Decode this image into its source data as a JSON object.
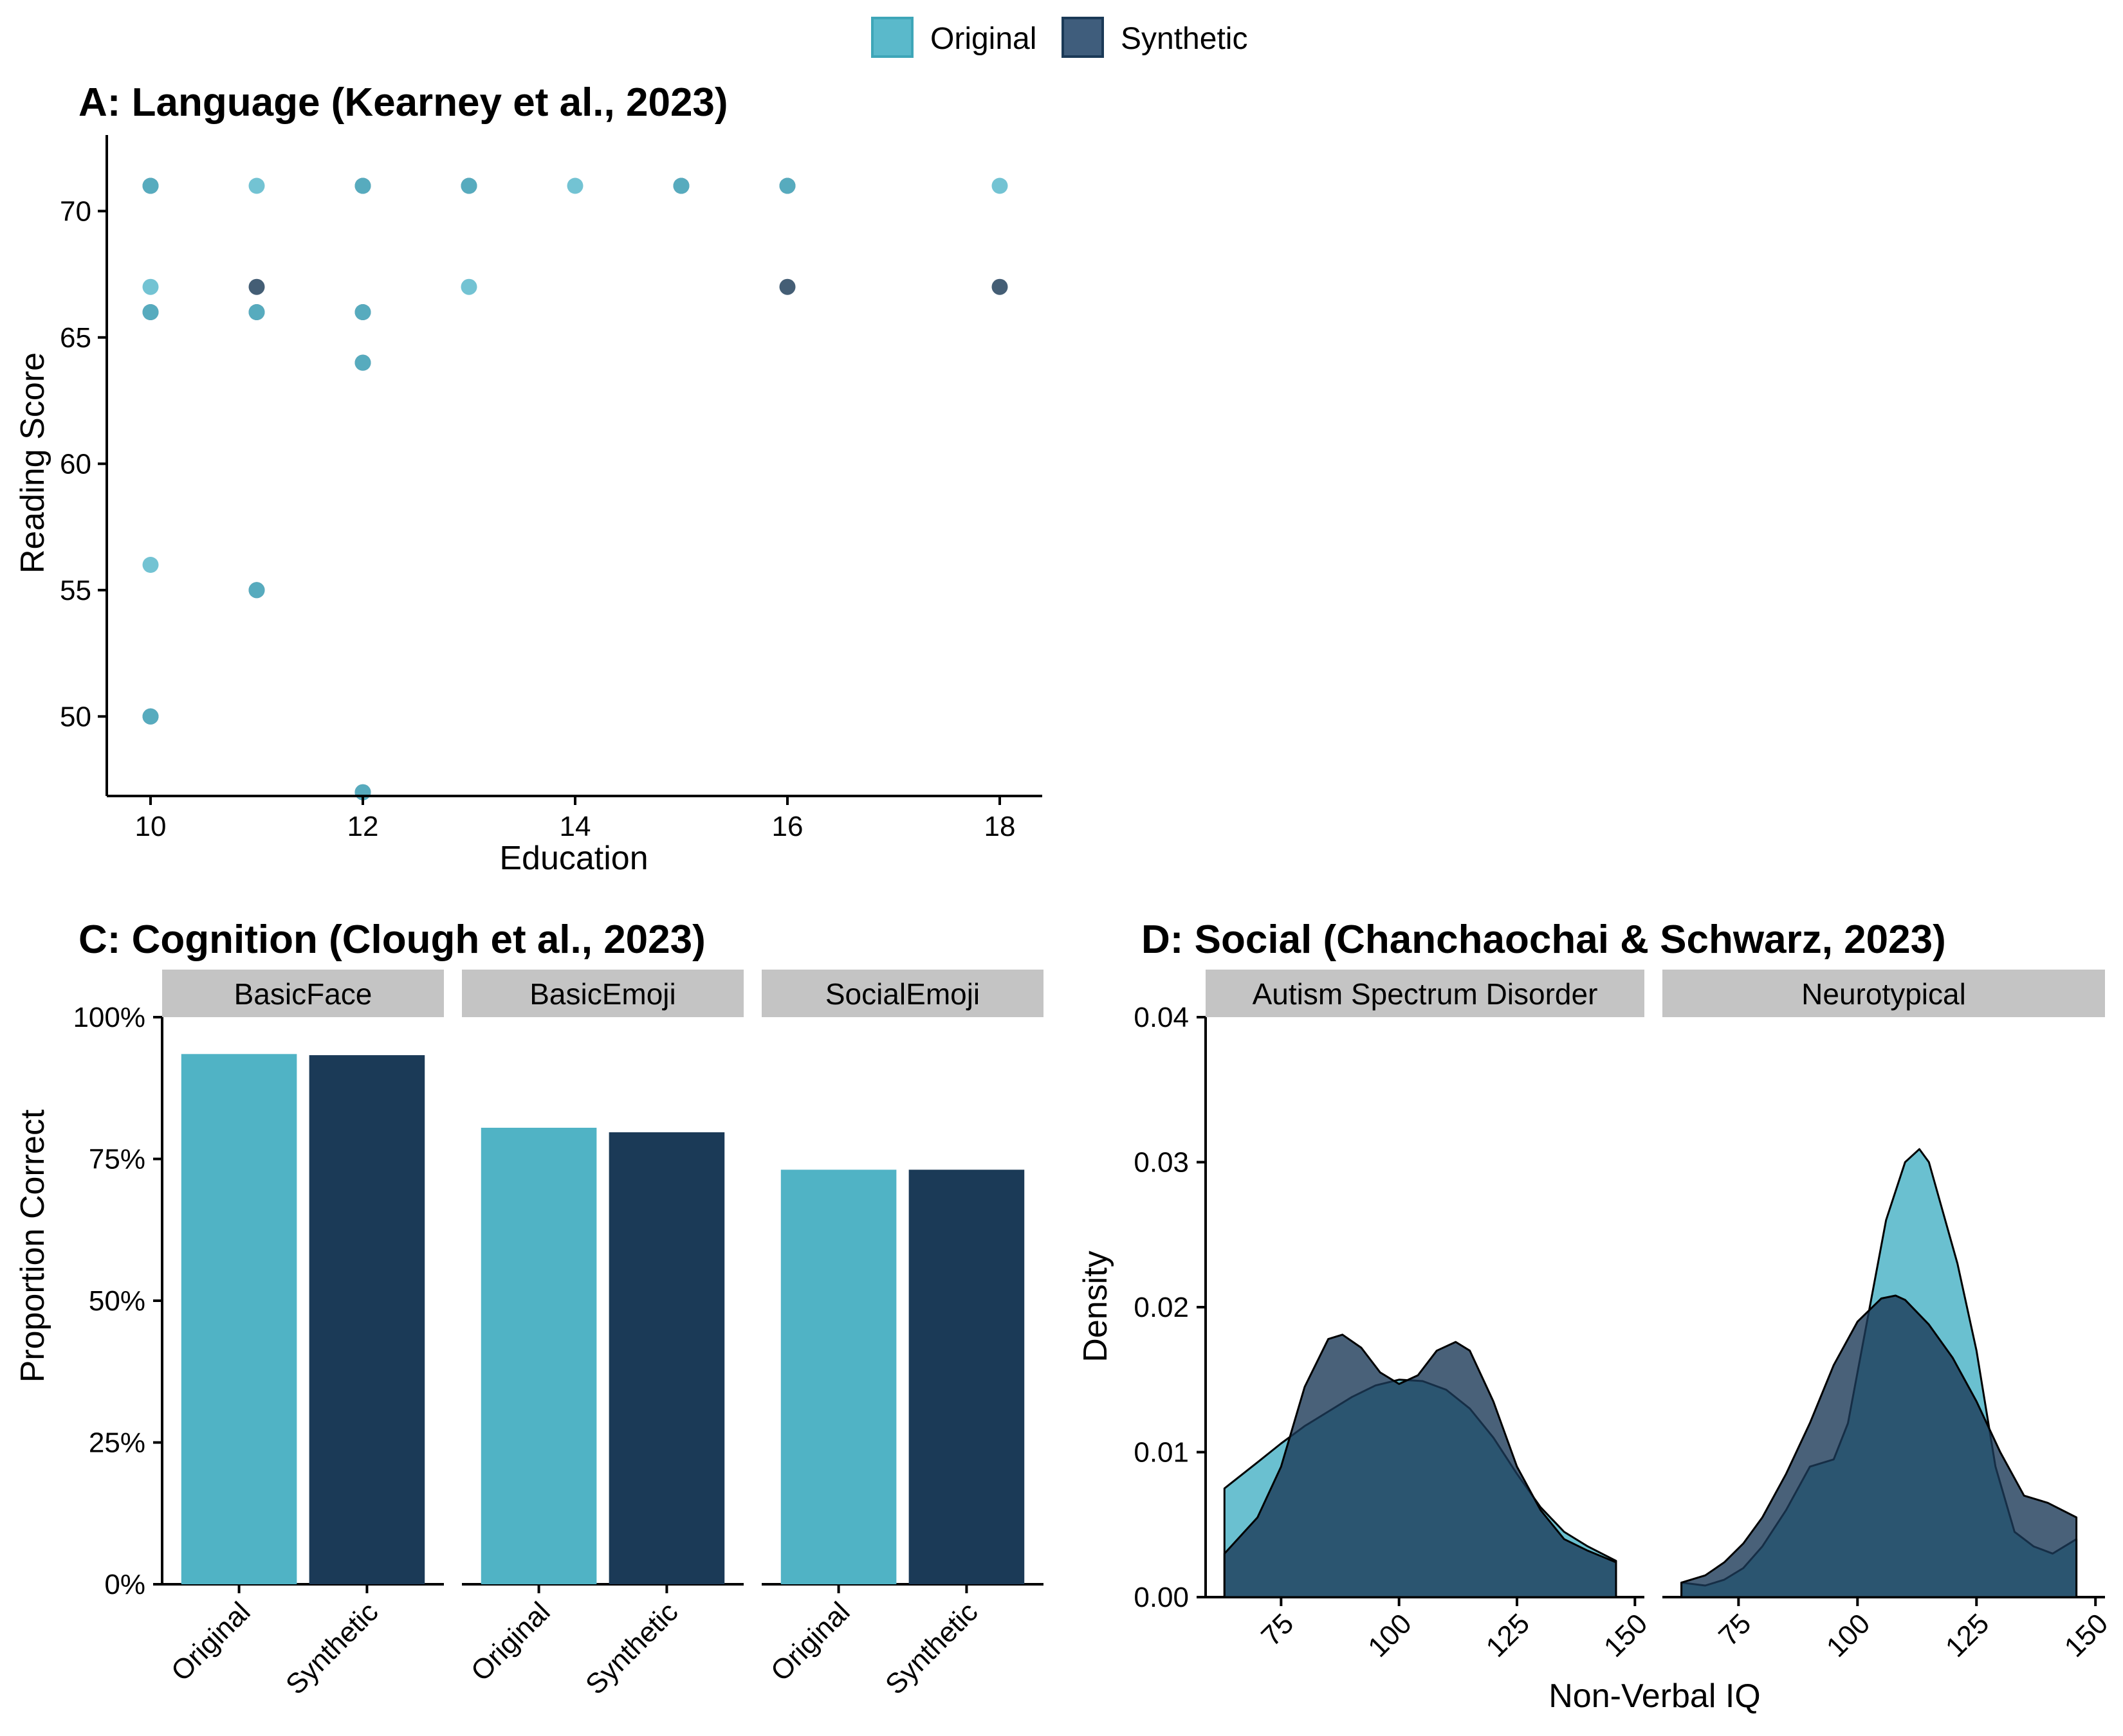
{
  "legend": {
    "items": [
      {
        "label": "Original",
        "color": "#5ab9cb"
      },
      {
        "label": "Synthetic",
        "color": "#1b3a57"
      }
    ]
  },
  "chart_data": [
    {
      "id": "A",
      "type": "scatter",
      "title": "A: Language (Kearney et al., 2023)",
      "xlabel": "Education",
      "ylabel": "Reading Score",
      "xlim": [
        9.6,
        18.4
      ],
      "ylim": [
        45.3,
        72.5
      ],
      "xticks": [
        10,
        12,
        14,
        16,
        18
      ],
      "yticks": [
        50,
        55,
        60,
        65,
        70
      ],
      "grid": false,
      "series": [
        {
          "name": "Original",
          "points": [
            [
              10,
              71
            ],
            [
              10,
              67
            ],
            [
              10,
              66
            ],
            [
              10,
              56
            ],
            [
              10,
              50
            ],
            [
              11,
              71
            ],
            [
              11,
              66
            ],
            [
              11,
              55
            ],
            [
              12,
              71
            ],
            [
              12,
              66
            ],
            [
              12,
              64
            ],
            [
              12,
              47
            ],
            [
              13,
              71
            ],
            [
              13,
              67
            ],
            [
              14,
              71
            ],
            [
              15,
              71
            ],
            [
              16,
              71
            ],
            [
              18,
              71
            ]
          ]
        },
        {
          "name": "Synthetic",
          "points": [
            [
              10,
              71
            ],
            [
              10,
              66
            ],
            [
              10,
              50
            ],
            [
              11,
              67
            ],
            [
              11,
              66
            ],
            [
              11,
              55
            ],
            [
              12,
              71
            ],
            [
              12,
              66
            ],
            [
              12,
              64
            ],
            [
              12,
              47
            ],
            [
              13,
              71
            ],
            [
              15,
              71
            ],
            [
              16,
              71
            ],
            [
              16,
              67
            ],
            [
              18,
              67
            ]
          ]
        }
      ]
    },
    {
      "id": "C",
      "type": "bar",
      "title": "C: Cognition (Clough  et al., 2023)",
      "ylabel": "Proportion Correct",
      "ylim": [
        0,
        1
      ],
      "yticks": [
        "0%",
        "25%",
        "50%",
        "75%",
        "100%"
      ],
      "categories": [
        "Original",
        "Synthetic"
      ],
      "facets": [
        {
          "label": "BasicFace",
          "values": [
            0.935,
            0.933
          ]
        },
        {
          "label": "BasicEmoji",
          "values": [
            0.805,
            0.797
          ]
        },
        {
          "label": "SocialEmoji",
          "values": [
            0.731,
            0.731
          ]
        }
      ],
      "grid": false
    },
    {
      "id": "D",
      "type": "area",
      "title": "D: Social (Chanchaochai & Schwarz, 2023)",
      "xlabel": "Non-Verbal IQ",
      "ylabel": "Density",
      "ylim": [
        0,
        0.04
      ],
      "yticks": [
        "0.00",
        "0.01",
        "0.02",
        "0.03",
        "0.04"
      ],
      "xticks": [
        "75",
        "100",
        "125",
        "150"
      ],
      "xlim": [
        59,
        152
      ],
      "grid": false,
      "facets": [
        {
          "label": "Autism Spectrum Disorder",
          "series": [
            {
              "name": "Original",
              "x": [
                63,
                70,
                75,
                80,
                85,
                90,
                95,
                100,
                105,
                110,
                115,
                120,
                125,
                130,
                135,
                140,
                146
              ],
              "y": [
                0.0075,
                0.0093,
                0.0106,
                0.0118,
                0.0128,
                0.0138,
                0.0146,
                0.015,
                0.0149,
                0.0143,
                0.013,
                0.011,
                0.0085,
                0.0062,
                0.0045,
                0.0035,
                0.0025
              ]
            },
            {
              "name": "Synthetic",
              "x": [
                63,
                70,
                75,
                80,
                85,
                88,
                92,
                96,
                100,
                104,
                108,
                112,
                115,
                120,
                125,
                130,
                135,
                140,
                146
              ],
              "y": [
                0.003,
                0.0055,
                0.009,
                0.0145,
                0.0178,
                0.0181,
                0.0172,
                0.0155,
                0.0147,
                0.0153,
                0.017,
                0.0176,
                0.017,
                0.0135,
                0.009,
                0.006,
                0.004,
                0.0032,
                0.0024
              ]
            }
          ]
        },
        {
          "label": "Neurotypical",
          "series": [
            {
              "name": "Original",
              "x": [
                63,
                68,
                72,
                76,
                80,
                85,
                90,
                95,
                98,
                102,
                106,
                110,
                113,
                115,
                118,
                121,
                125,
                129,
                133,
                137,
                141,
                146
              ],
              "y": [
                0.001,
                0.0008,
                0.0012,
                0.002,
                0.0035,
                0.006,
                0.009,
                0.0095,
                0.012,
                0.019,
                0.026,
                0.03,
                0.0309,
                0.03,
                0.0265,
                0.023,
                0.017,
                0.009,
                0.0045,
                0.0035,
                0.003,
                0.004
              ]
            },
            {
              "name": "Synthetic",
              "x": [
                63,
                68,
                72,
                76,
                80,
                85,
                90,
                95,
                100,
                105,
                108,
                110,
                115,
                120,
                125,
                130,
                135,
                140,
                146
              ],
              "y": [
                0.001,
                0.0015,
                0.0024,
                0.0037,
                0.0055,
                0.0085,
                0.012,
                0.016,
                0.019,
                0.0206,
                0.0208,
                0.0205,
                0.0188,
                0.0165,
                0.0135,
                0.01,
                0.007,
                0.0065,
                0.0055
              ]
            }
          ]
        }
      ]
    }
  ]
}
